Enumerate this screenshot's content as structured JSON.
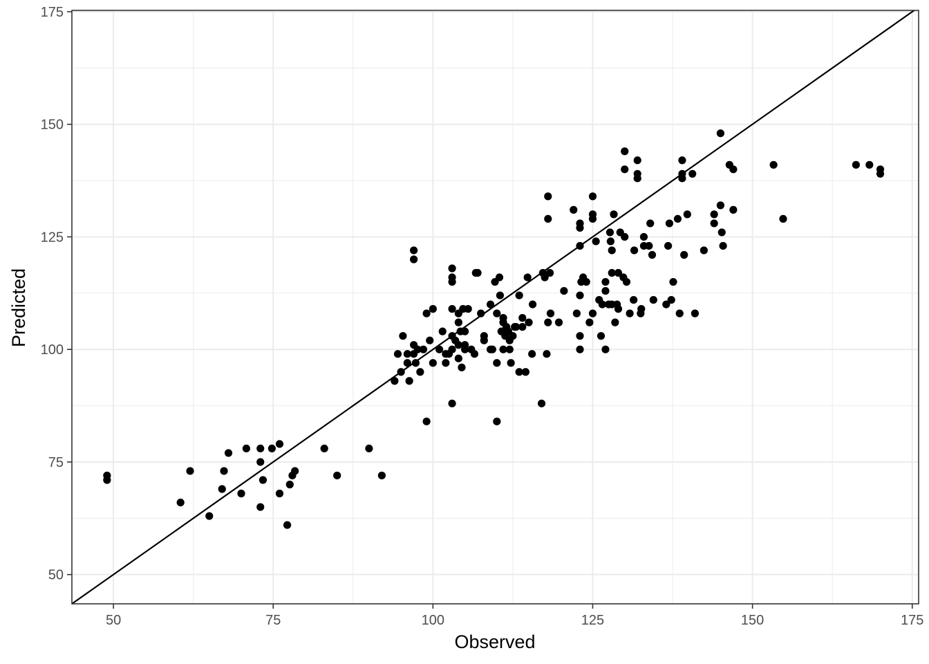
{
  "chart_data": {
    "type": "scatter",
    "title": "",
    "xlabel": "Observed",
    "ylabel": "Predicted",
    "xlim": [
      43.5,
      176
    ],
    "ylim": [
      43.5,
      175.3
    ],
    "x_ticks": [
      50,
      75,
      100,
      125,
      150,
      175
    ],
    "y_ticks": [
      50,
      75,
      100,
      125,
      150,
      175
    ],
    "x_tick_labels": [
      "50",
      "75",
      "100",
      "125",
      "150",
      "175"
    ],
    "y_tick_labels": [
      "50",
      "75",
      "100",
      "125",
      "150",
      "175"
    ],
    "grid": true,
    "reference_line": {
      "type": "identity",
      "slope": 1,
      "intercept": 0
    },
    "colors": {
      "points": "#000000",
      "grid": "#ebebeb",
      "panel_border": "#333333"
    },
    "points": [
      [
        49,
        72
      ],
      [
        49,
        71
      ],
      [
        60.5,
        66
      ],
      [
        62,
        73
      ],
      [
        65,
        63
      ],
      [
        67,
        69
      ],
      [
        67.3,
        73
      ],
      [
        68,
        77
      ],
      [
        70,
        68
      ],
      [
        70.8,
        78
      ],
      [
        73,
        78
      ],
      [
        73,
        75
      ],
      [
        73,
        65
      ],
      [
        73.4,
        71
      ],
      [
        74.8,
        78
      ],
      [
        76,
        79
      ],
      [
        76,
        68
      ],
      [
        77.2,
        61
      ],
      [
        77.6,
        70
      ],
      [
        78,
        72
      ],
      [
        78.4,
        73
      ],
      [
        83,
        78
      ],
      [
        85,
        72
      ],
      [
        90,
        78
      ],
      [
        92,
        72
      ],
      [
        94,
        93
      ],
      [
        94.5,
        99
      ],
      [
        95,
        95
      ],
      [
        95.3,
        103
      ],
      [
        96,
        97
      ],
      [
        96,
        99
      ],
      [
        96.3,
        93
      ],
      [
        97,
        122
      ],
      [
        97,
        120
      ],
      [
        97,
        99
      ],
      [
        97,
        101
      ],
      [
        97.3,
        97
      ],
      [
        97.6,
        100
      ],
      [
        98,
        95
      ],
      [
        98.5,
        100
      ],
      [
        99,
        84
      ],
      [
        99,
        108
      ],
      [
        99.5,
        102
      ],
      [
        100,
        97
      ],
      [
        100,
        109
      ],
      [
        101,
        100
      ],
      [
        101.5,
        104
      ],
      [
        102,
        97
      ],
      [
        102,
        99
      ],
      [
        102.5,
        99
      ],
      [
        103,
        118
      ],
      [
        103,
        116
      ],
      [
        103,
        115
      ],
      [
        103,
        109
      ],
      [
        103,
        103
      ],
      [
        103,
        100
      ],
      [
        103,
        88
      ],
      [
        103.5,
        102
      ],
      [
        104,
        108
      ],
      [
        104,
        106
      ],
      [
        104,
        101
      ],
      [
        104,
        98
      ],
      [
        104.3,
        104
      ],
      [
        104.5,
        96
      ],
      [
        104.7,
        109
      ],
      [
        105,
        100
      ],
      [
        105,
        101
      ],
      [
        105,
        104
      ],
      [
        105.5,
        109
      ],
      [
        106,
        100
      ],
      [
        106.5,
        99
      ],
      [
        106.7,
        117
      ],
      [
        107,
        117
      ],
      [
        107.5,
        108
      ],
      [
        108,
        102
      ],
      [
        108,
        103
      ],
      [
        109,
        110
      ],
      [
        109,
        100
      ],
      [
        109.3,
        100
      ],
      [
        109.7,
        115
      ],
      [
        110,
        97
      ],
      [
        110,
        108
      ],
      [
        110,
        84
      ],
      [
        110.4,
        116
      ],
      [
        110.5,
        112
      ],
      [
        110.7,
        104
      ],
      [
        111,
        100
      ],
      [
        111,
        107
      ],
      [
        111,
        106
      ],
      [
        111.3,
        103
      ],
      [
        111.5,
        105
      ],
      [
        111.8,
        104
      ],
      [
        112,
        100
      ],
      [
        112,
        102
      ],
      [
        112.2,
        97
      ],
      [
        112.5,
        103
      ],
      [
        112.8,
        105
      ],
      [
        113,
        105
      ],
      [
        113.5,
        112
      ],
      [
        113.5,
        95
      ],
      [
        114,
        107
      ],
      [
        114,
        105
      ],
      [
        114.5,
        95
      ],
      [
        114.8,
        116
      ],
      [
        115,
        106
      ],
      [
        115.5,
        99
      ],
      [
        115.6,
        110
      ],
      [
        117,
        88
      ],
      [
        117.2,
        117
      ],
      [
        117.5,
        116
      ],
      [
        117.8,
        99
      ],
      [
        118,
        134
      ],
      [
        118,
        129
      ],
      [
        118,
        106
      ],
      [
        118.3,
        117
      ],
      [
        118.4,
        108
      ],
      [
        119.7,
        106
      ],
      [
        120.5,
        113
      ],
      [
        122,
        131
      ],
      [
        122.5,
        108
      ],
      [
        123,
        128
      ],
      [
        123,
        127
      ],
      [
        123,
        123
      ],
      [
        123,
        112
      ],
      [
        123,
        103
      ],
      [
        123,
        100
      ],
      [
        123.2,
        115
      ],
      [
        123.5,
        116
      ],
      [
        124,
        115
      ],
      [
        124.5,
        106
      ],
      [
        125,
        134
      ],
      [
        125,
        130
      ],
      [
        125,
        129
      ],
      [
        125,
        108
      ],
      [
        125.5,
        124
      ],
      [
        126,
        111
      ],
      [
        126.3,
        103
      ],
      [
        126.5,
        110
      ],
      [
        127,
        115
      ],
      [
        127,
        113
      ],
      [
        127,
        100
      ],
      [
        127.5,
        110
      ],
      [
        127.7,
        126
      ],
      [
        127.8,
        124
      ],
      [
        128,
        117
      ],
      [
        128,
        110
      ],
      [
        128,
        122
      ],
      [
        128.3,
        130
      ],
      [
        128.5,
        106
      ],
      [
        128.8,
        110
      ],
      [
        129,
        109
      ],
      [
        129,
        117
      ],
      [
        129.3,
        126
      ],
      [
        129.8,
        116
      ],
      [
        130,
        144
      ],
      [
        130,
        140
      ],
      [
        130,
        125
      ],
      [
        130.3,
        115
      ],
      [
        130.8,
        108
      ],
      [
        131.4,
        111
      ],
      [
        131.5,
        122
      ],
      [
        132,
        142
      ],
      [
        132,
        139
      ],
      [
        132,
        138
      ],
      [
        132.5,
        108
      ],
      [
        132.6,
        109
      ],
      [
        133,
        125
      ],
      [
        133,
        123
      ],
      [
        133.8,
        123
      ],
      [
        134,
        128
      ],
      [
        134.3,
        121
      ],
      [
        134.5,
        111
      ],
      [
        136.5,
        110
      ],
      [
        136.8,
        123
      ],
      [
        137,
        128
      ],
      [
        137.3,
        111
      ],
      [
        137.6,
        115
      ],
      [
        138.3,
        129
      ],
      [
        138.6,
        108
      ],
      [
        139,
        142
      ],
      [
        139,
        139
      ],
      [
        139,
        138
      ],
      [
        139.3,
        121
      ],
      [
        139.8,
        130
      ],
      [
        140.6,
        139
      ],
      [
        141,
        108
      ],
      [
        142.4,
        122
      ],
      [
        144,
        130
      ],
      [
        144,
        128
      ],
      [
        145,
        148
      ],
      [
        145,
        132
      ],
      [
        145.2,
        126
      ],
      [
        145.4,
        123
      ],
      [
        146.4,
        141
      ],
      [
        147,
        140
      ],
      [
        147,
        131
      ],
      [
        153.3,
        141
      ],
      [
        154.8,
        129
      ],
      [
        166.2,
        141
      ],
      [
        168.3,
        141
      ],
      [
        170,
        140
      ],
      [
        170,
        139
      ]
    ]
  }
}
